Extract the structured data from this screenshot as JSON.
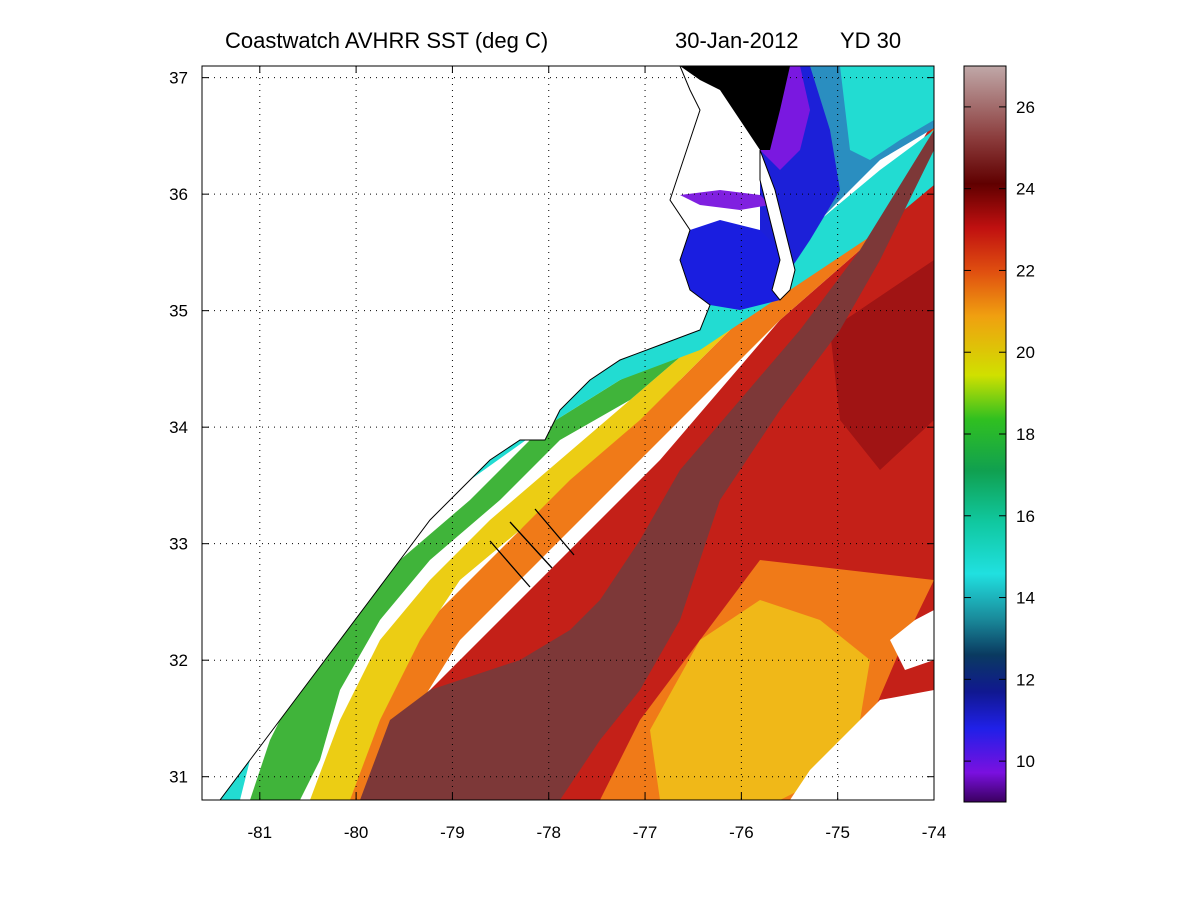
{
  "title": {
    "product": "Coastwatch   AVHRR   SST  (deg C)",
    "date": "30-Jan-2012",
    "yearday": "YD 30"
  },
  "map": {
    "lon_range": [
      -81.6,
      -74
    ],
    "lat_range": [
      30.8,
      37.1
    ],
    "lon_ticks": [
      "-81",
      "-80",
      "-79",
      "-78",
      "-77",
      "-76",
      "-75",
      "-74"
    ],
    "lat_ticks": [
      "31",
      "32",
      "33",
      "34",
      "35",
      "36",
      "37"
    ],
    "grid": "dotted"
  },
  "colorbar": {
    "range": [
      9,
      27
    ],
    "ticks": [
      "10",
      "12",
      "14",
      "16",
      "18",
      "20",
      "22",
      "24",
      "26"
    ]
  },
  "colors": {
    "gulf_stream": "#7a3636",
    "warm_red": "#c82020",
    "orange": "#f0781a",
    "yellow": "#e8c41a",
    "green": "#3cb43c",
    "cyan": "#1edcd2",
    "blue": "#1a2ad8",
    "land": "#ffffff"
  }
}
